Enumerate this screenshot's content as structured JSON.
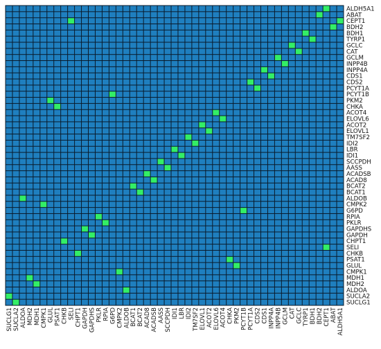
{
  "chart_data": {
    "type": "heatmap",
    "title": "",
    "xlabel": "",
    "ylabel": "",
    "genes": [
      "SUCLG1",
      "SUCLA2",
      "ALDOA",
      "MDH2",
      "MDH1",
      "CMPK1",
      "GLUL",
      "PSAT1",
      "CHKB",
      "SELI",
      "CHPT1",
      "GAPDH",
      "GAPDHS",
      "PKLR",
      "RPIA",
      "G6PD",
      "CMPK2",
      "ALDOB",
      "BCAT1",
      "BCAT2",
      "ACAD8",
      "ACADSB",
      "AASS",
      "SCCPDH",
      "IDI1",
      "LBR",
      "IDI2",
      "TM7SF2",
      "ELOVL1",
      "ACOT2",
      "ELOVL6",
      "ACOT4",
      "CHKA",
      "PKM2",
      "PCYT1B",
      "PCYT1A",
      "CDS2",
      "CDS1",
      "INPP4A",
      "INPP4B",
      "GCLM",
      "CAT",
      "GCLC",
      "TYRP1",
      "BDH1",
      "BDH2",
      "CEPT1",
      "ABAT",
      "ALDH5A1"
    ],
    "x_labels": [
      "SUCLG1",
      "SUCLA2",
      "ALDOA",
      "MDH2",
      "MDH1",
      "CMPK1",
      "GLUL",
      "PSAT1",
      "CHKB",
      "SELI",
      "CHPT1",
      "GAPDH",
      "GAPDHS",
      "PKLR",
      "RPIA",
      "G6PD",
      "CMPK2",
      "ALDOB",
      "BCAT1",
      "BCAT2",
      "ACAD8",
      "ACADSB",
      "AASS",
      "SCCPDH",
      "IDI1",
      "LBR",
      "IDI2",
      "TM7SF2",
      "ELOVL1",
      "ACOT2",
      "ELOVL6",
      "ACOT4",
      "CHKA",
      "PKM2",
      "PCYT1B",
      "PCYT1A",
      "CDS2",
      "CDS1",
      "INPP4A",
      "INPP4B",
      "GCLM",
      "CAT",
      "GCLC",
      "TYRP1",
      "BDH1",
      "BDH2",
      "CEPT1",
      "ABAT",
      "ALDH5A1"
    ],
    "y_labels_top_to_bottom": [
      "ALDH5A1",
      "ABAT",
      "CEPT1",
      "BDH2",
      "BDH1",
      "TYRP1",
      "GCLC",
      "CAT",
      "GCLM",
      "INPP4B",
      "INPP4A",
      "CDS1",
      "CDS2",
      "PCYT1A",
      "PCYT1B",
      "PKM2",
      "CHKA",
      "ACOT4",
      "ELOVL6",
      "ACOT2",
      "ELOVL1",
      "TM7SF2",
      "IDI2",
      "LBR",
      "IDI1",
      "SCCPDH",
      "AASS",
      "ACADSB",
      "ACAD8",
      "BCAT2",
      "BCAT1",
      "ALDOB",
      "CMPK2",
      "G6PD",
      "RPIA",
      "PKLR",
      "GAPDHS",
      "GAPDH",
      "CHPT1",
      "SELI",
      "CHKB",
      "PSAT1",
      "GLUL",
      "CMPK1",
      "MDH1",
      "MDH2",
      "ALDOA",
      "SUCLA2",
      "SUCLG1"
    ],
    "pairs": [
      [
        "SUCLG1",
        "SUCLA2"
      ],
      [
        "ALDOA",
        "ALDOB"
      ],
      [
        "MDH2",
        "MDH1"
      ],
      [
        "CMPK1",
        "CMPK2"
      ],
      [
        "GLUL",
        "PKM2"
      ],
      [
        "PSAT1",
        "CHKA"
      ],
      [
        "CHKB",
        "CHPT1"
      ],
      [
        "SELI",
        "CEPT1"
      ],
      [
        "GAPDH",
        "GAPDHS"
      ],
      [
        "PKLR",
        "RPIA"
      ],
      [
        "G6PD",
        "PCYT1B"
      ],
      [
        "BCAT1",
        "BCAT2"
      ],
      [
        "ACAD8",
        "ACADSB"
      ],
      [
        "AASS",
        "SCCPDH"
      ],
      [
        "IDI1",
        "LBR"
      ],
      [
        "IDI2",
        "TM7SF2"
      ],
      [
        "ELOVL1",
        "ACOT2"
      ],
      [
        "ELOVL6",
        "ACOT4"
      ],
      [
        "PCYT1A",
        "CDS2"
      ],
      [
        "CDS1",
        "INPP4A"
      ],
      [
        "INPP4B",
        "GCLM"
      ],
      [
        "CAT",
        "GCLC"
      ],
      [
        "TYRP1",
        "BDH1"
      ],
      [
        "BDH2",
        "ABAT"
      ],
      [
        "CEPT1",
        "ALDH5A1"
      ]
    ],
    "value_encoding": "1 = paired (green), 0 = not paired (blue)",
    "colors": {
      "background_cell": "#1f7fbf",
      "paired_cell": "#33ee66",
      "grid": "#0a1a2a"
    },
    "legend": "none",
    "grid": true
  }
}
